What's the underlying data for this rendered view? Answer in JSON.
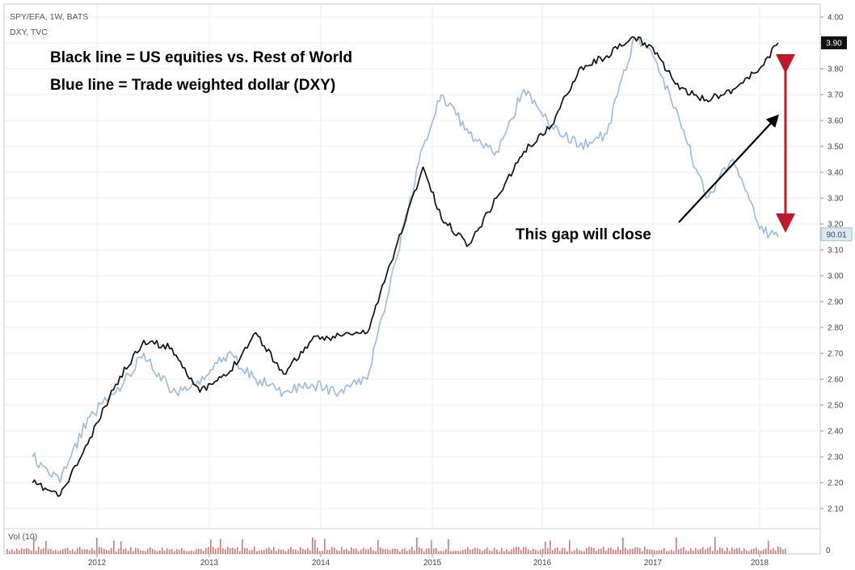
{
  "header": {
    "symbol_line": "SPY/EFA, 1W, BATS",
    "compare_line": "DXY, TVC"
  },
  "annotations": {
    "black_line": "Black line = US equities vs. Rest of World",
    "blue_line": "Blue line = Trade weighted dollar (DXY)",
    "gap": "This gap will close"
  },
  "volume_label": "Vol (10)",
  "colors": {
    "ratio_line": "#111111",
    "dxy_line": "#9dbde0",
    "gap_arrow": "#c0182a",
    "pointer_arrow": "#000000",
    "grid": "#ececec",
    "volume_bars": "#c94848"
  },
  "chart_data": {
    "type": "line",
    "x_axis": {
      "type": "time",
      "ticks": [
        "2012",
        "2013",
        "2014",
        "2015",
        "2016",
        "2017",
        "2018"
      ]
    },
    "y_axis": {
      "position": "right",
      "range": [
        2.02,
        4.02
      ],
      "ticks": [
        "2.10",
        "2.20",
        "2.30",
        "2.40",
        "2.50",
        "2.60",
        "2.70",
        "2.80",
        "2.90",
        "3.00",
        "3.10",
        "3.20",
        "3.30",
        "3.40",
        "3.50",
        "3.60",
        "3.70",
        "3.80",
        "3.90",
        "4.00"
      ]
    },
    "grid": true,
    "last_value_labels": [
      {
        "series": "SPY/EFA",
        "text": "3.90"
      },
      {
        "series": "DXY",
        "text": "90.01"
      }
    ],
    "volume_axis_label": "0",
    "series": [
      {
        "name": "SPY/EFA",
        "x": [
          "2011-06",
          "2011-09",
          "2011-12",
          "2012-03",
          "2012-06",
          "2012-09",
          "2012-12",
          "2013-03",
          "2013-06",
          "2013-09",
          "2013-12",
          "2014-03",
          "2014-06",
          "2014-09",
          "2014-12",
          "2015-02",
          "2015-05",
          "2015-08",
          "2015-11",
          "2016-02",
          "2016-05",
          "2016-08",
          "2016-11",
          "2017-01",
          "2017-04",
          "2017-07",
          "2017-10",
          "2018-01",
          "2018-03"
        ],
        "y": [
          2.2,
          2.15,
          2.35,
          2.58,
          2.75,
          2.72,
          2.55,
          2.62,
          2.78,
          2.62,
          2.75,
          2.77,
          2.78,
          3.1,
          3.42,
          3.22,
          3.12,
          3.3,
          3.48,
          3.58,
          3.8,
          3.85,
          3.92,
          3.88,
          3.72,
          3.68,
          3.72,
          3.8,
          3.9
        ]
      },
      {
        "name": "DXY",
        "x": [
          "2011-06",
          "2011-09",
          "2011-12",
          "2012-03",
          "2012-06",
          "2012-09",
          "2012-12",
          "2013-03",
          "2013-06",
          "2013-09",
          "2013-12",
          "2014-03",
          "2014-06",
          "2014-09",
          "2014-12",
          "2015-02",
          "2015-05",
          "2015-08",
          "2015-11",
          "2016-02",
          "2016-05",
          "2016-08",
          "2016-11",
          "2017-01",
          "2017-04",
          "2017-07",
          "2017-10",
          "2018-01",
          "2018-03"
        ],
        "y": [
          2.3,
          2.2,
          2.45,
          2.55,
          2.7,
          2.55,
          2.58,
          2.7,
          2.6,
          2.55,
          2.58,
          2.55,
          2.6,
          3.05,
          3.5,
          3.7,
          3.55,
          3.48,
          3.72,
          3.58,
          3.5,
          3.55,
          3.92,
          3.85,
          3.6,
          3.3,
          3.45,
          3.18,
          3.15
        ]
      }
    ]
  }
}
